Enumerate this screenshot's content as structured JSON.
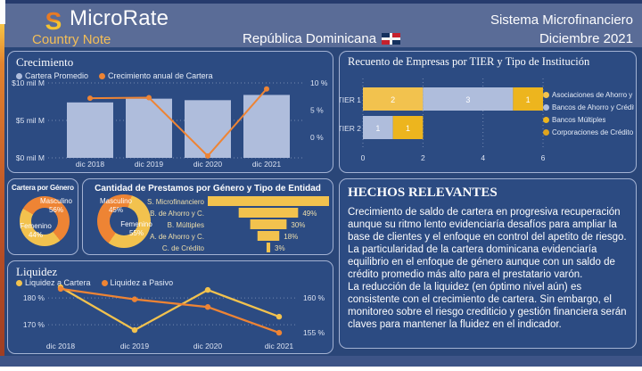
{
  "header": {
    "brand": "MicroRate",
    "subtitle": "Country Note",
    "country": "República Dominicana",
    "right_line1": "Sistema Microfinanciero",
    "right_line2": "Diciembre 2021"
  },
  "colors": {
    "orange": "#EE8434",
    "yellow": "#F2C24E",
    "steel": "#AFBDDC",
    "gold": "#EDB51E",
    "amber": "#DFA41E",
    "page_bg": "#2A4678",
    "panel_bg": "#2C4B82",
    "header_bg": "#5A6C97",
    "footer_bg": "#3D5487",
    "accent_stripe": "#B84A26"
  },
  "notes": {
    "title": "HECHOS RELEVANTES",
    "paragraphs": [
      "Crecimiento de saldo de cartera en progresiva recuperación aunque su ritmo lento evidenciaría desafíos para ampliar la base de clientes y el enfoque en control del apetito de riesgo.",
      "La particularidad de la cartera dominicana evidenciaría equilibrio en el enfoque de género aunque con un saldo de crédito promedio más alto para el prestatario varón.",
      "La reducción de la liquidez (en óptimo nivel aún) es consistente con el crecimiento de cartera. Sin embargo, el monitoreo sobre el riesgo crediticio y gestión financiera serán claves para mantener la fluidez en el indicador."
    ]
  },
  "chart_data": [
    {
      "id": "crecimiento",
      "type": "bar",
      "title": "Crecimiento",
      "categories": [
        "dic 2018",
        "dic 2019",
        "dic 2020",
        "dic 2021"
      ],
      "series": [
        {
          "name": "Cartera Promedio",
          "kind": "bar",
          "axis": "left",
          "color_key": "steel",
          "values": [
            7.4,
            7.9,
            7.7,
            8.4
          ]
        },
        {
          "name": "Crecimiento anual de Cartera",
          "kind": "line",
          "axis": "right",
          "color_key": "orange",
          "values": [
            7.2,
            7.3,
            -3.4,
            8.9
          ]
        }
      ],
      "left_axis": {
        "min": 0,
        "max": 10,
        "ticks": [
          {
            "label": "$10 mil M",
            "value": 10
          },
          {
            "label": "$5 mil M",
            "value": 5
          },
          {
            "label": "$0 mil M",
            "value": 0
          }
        ]
      },
      "right_axis": {
        "min": -3.75,
        "max": 10,
        "ticks": [
          {
            "label": "10 %",
            "value": 10
          },
          {
            "label": "5 %",
            "value": 5
          },
          {
            "label": "0 %",
            "value": 0
          }
        ]
      }
    },
    {
      "id": "tier",
      "type": "bar",
      "title": "Recuento de Empresas por TIER y Tipo de Institución",
      "categories": [
        "TIER 1",
        "TIER 2"
      ],
      "legend": [
        {
          "label": "Asociaciones de Ahorro y …",
          "color_key": "yellow"
        },
        {
          "label": "Bancos de Ahorro y Crédito",
          "color_key": "steel"
        },
        {
          "label": "Bancos Múltiples",
          "color_key": "gold"
        },
        {
          "label": "Corporaciones de Crédito",
          "color_key": "amber"
        }
      ],
      "rows": [
        {
          "category": "TIER 1",
          "segments": [
            {
              "legend": 0,
              "value": 2
            },
            {
              "legend": 1,
              "value": 3
            },
            {
              "legend": 2,
              "value": 1
            }
          ]
        },
        {
          "category": "TIER 2",
          "segments": [
            {
              "legend": 1,
              "value": 1
            },
            {
              "legend": 2,
              "value": 1
            }
          ]
        }
      ],
      "x_axis": {
        "ticks": [
          0,
          2,
          4,
          6
        ],
        "max": 6
      }
    },
    {
      "id": "cartera_genero",
      "type": "pie",
      "title": "Cartera por Género",
      "slices": [
        {
          "label": "Masculino",
          "pct": 56,
          "color_key": "orange"
        },
        {
          "label": "Femenino",
          "pct": 44,
          "color_key": "yellow"
        }
      ]
    },
    {
      "id": "prestamos",
      "type": "pie",
      "title": "Cantidad de Prestamos por Género y Tipo de Entidad",
      "donut": {
        "slices": [
          {
            "label": "Masculino",
            "pct": 45,
            "color_key": "orange"
          },
          {
            "label": "Femenino",
            "pct": 55,
            "color_key": "yellow"
          }
        ]
      },
      "funnel": {
        "categories": [
          "S. Microfinanciero",
          "B. de Ahorro y C.",
          "B. Múltiples",
          "A. de Ahorro y C.",
          "C. de Crédito"
        ],
        "values_pct": [
          100,
          49,
          30,
          18,
          3
        ],
        "labels": [
          "",
          "49%",
          "30%",
          "18%",
          "3%"
        ],
        "color_key": "yellow"
      }
    },
    {
      "id": "liquidez",
      "type": "line",
      "title": "Liquidez",
      "categories": [
        "dic 2018",
        "dic 2019",
        "dic 2020",
        "dic 2021"
      ],
      "series": [
        {
          "name": "Liquidez a Cartera",
          "axis": "left",
          "color_key": "yellow",
          "values": [
            184,
            168,
            183,
            173
          ]
        },
        {
          "name": "Liquidez a Pasivo",
          "axis": "right",
          "color_key": "orange",
          "values": [
            161.3,
            159.8,
            158.7,
            155
          ]
        }
      ],
      "left_axis": {
        "min": 165.7,
        "max": 184.7,
        "ticks": [
          {
            "label": "180 %",
            "value": 180
          },
          {
            "label": "170 %",
            "value": 170
          }
        ]
      },
      "right_axis": {
        "min": 154.5,
        "max": 161.8,
        "ticks": [
          {
            "label": "160 %",
            "value": 160
          },
          {
            "label": "155 %",
            "value": 155
          }
        ]
      }
    }
  ]
}
